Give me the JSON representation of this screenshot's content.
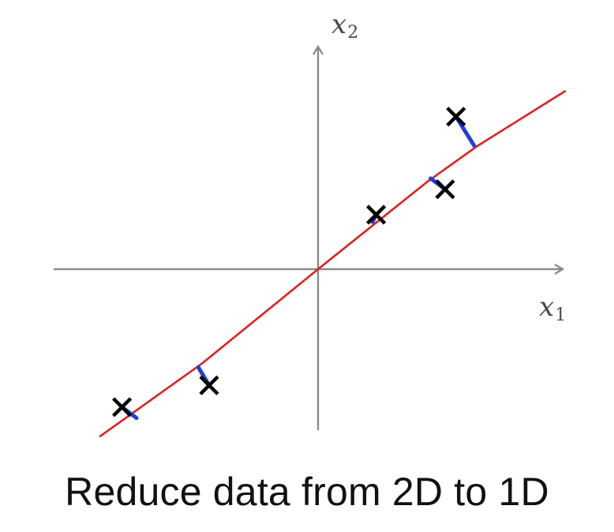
{
  "diagram": {
    "title": "Reduce data from 2D to 1D",
    "x1_label": {
      "var": "x",
      "sub": "1"
    },
    "x2_label": {
      "var": "x",
      "sub": "2"
    }
  },
  "colors": {
    "axis": "#8a8a8a",
    "projection_line": "#e02020",
    "projection_segment": "#1f3fd6",
    "marker": "#000000",
    "caption": "#111111"
  },
  "chart_data": {
    "type": "scatter",
    "title": "Reduce data from 2D to 1D",
    "xlabel": "x1",
    "ylabel": "x2",
    "xlim": [
      -3.4,
      3.4
    ],
    "ylim": [
      -2.3,
      3.0
    ],
    "points": [
      {
        "x": -2.7,
        "y": -1.9
      },
      {
        "x": -1.5,
        "y": -1.6
      },
      {
        "x": 0.8,
        "y": 0.75
      },
      {
        "x": 1.75,
        "y": 1.1
      },
      {
        "x": 1.9,
        "y": 2.1
      }
    ],
    "fit_line": {
      "points": [
        {
          "x": -3.0,
          "y": -2.3
        },
        {
          "x": -1.6,
          "y": -1.3
        },
        {
          "x": 0.0,
          "y": 0.0
        },
        {
          "x": 1.5,
          "y": 1.2
        },
        {
          "x": 2.2,
          "y": 1.7
        },
        {
          "x": 3.4,
          "y": 2.45
        }
      ]
    },
    "projections": [
      {
        "from": {
          "x": -2.7,
          "y": -1.9
        },
        "to": {
          "x": -2.5,
          "y": -2.05
        }
      },
      {
        "from": {
          "x": -1.5,
          "y": -1.6
        },
        "to": {
          "x": -1.65,
          "y": -1.35
        }
      },
      {
        "from": {
          "x": 0.8,
          "y": 0.75
        },
        "to": {
          "x": 0.75,
          "y": 0.65
        }
      },
      {
        "from": {
          "x": 1.75,
          "y": 1.1
        },
        "to": {
          "x": 1.55,
          "y": 1.25
        }
      },
      {
        "from": {
          "x": 1.9,
          "y": 2.1
        },
        "to": {
          "x": 2.15,
          "y": 1.7
        }
      }
    ]
  }
}
